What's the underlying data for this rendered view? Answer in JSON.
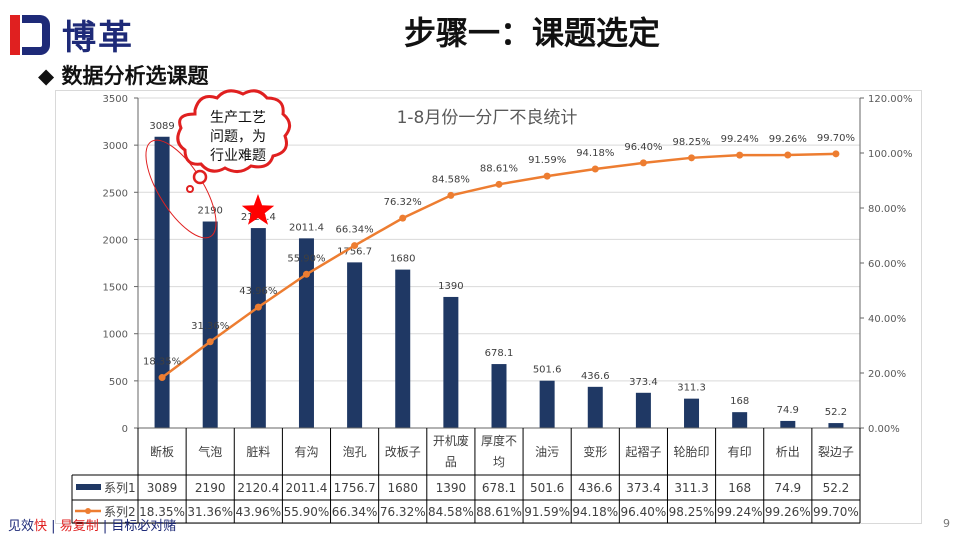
{
  "header": {
    "logo_text": "博革",
    "title": "步骤一：课题选定",
    "subtitle": "数据分析选课题",
    "bullet_icon": "diamond-icon"
  },
  "callout": {
    "text_lines": [
      "生产工艺",
      "问题，为",
      "行业难题"
    ]
  },
  "footer": {
    "parts": [
      "见效",
      "快",
      "易复制",
      "目标必对赌"
    ],
    "page": "9"
  },
  "colors": {
    "bar": "#1f3864",
    "line": "#ed7d31",
    "accent": "#e02020"
  },
  "chart_data": {
    "type": "bar+line",
    "title": "1-8月份一分厂不良统计",
    "categories": [
      "断板",
      "气泡",
      "脏料",
      "有沟",
      "泡孔",
      "改板子",
      "开机废品",
      "厚度不均",
      "油污",
      "变形",
      "起褶子",
      "轮胎印",
      "有印",
      "析出",
      "裂边子"
    ],
    "series": [
      {
        "name": "系列1",
        "type": "bar",
        "axis": "left",
        "values": [
          3089,
          2190,
          2120.4,
          2011.4,
          1756.7,
          1680,
          1390,
          678.1,
          501.6,
          436.6,
          373.4,
          311.3,
          168,
          74.9,
          52.2
        ],
        "labels": [
          "3089",
          "2190",
          "2120.4",
          "2011.4",
          "1756.7",
          "1680",
          "1390",
          "678.1",
          "501.6",
          "436.6",
          "373.4",
          "311.3",
          "168",
          "74.9",
          "52.2"
        ]
      },
      {
        "name": "系列2",
        "type": "line",
        "axis": "right",
        "values": [
          18.35,
          31.36,
          43.96,
          55.9,
          66.34,
          76.32,
          84.58,
          88.61,
          91.59,
          94.18,
          96.4,
          98.25,
          99.24,
          99.26,
          99.7
        ],
        "labels": [
          "18.35%",
          "31.36%",
          "43.96%",
          "55.90%",
          "66.34%",
          "76.32%",
          "84.58%",
          "88.61%",
          "91.59%",
          "94.18%",
          "96.40%",
          "98.25%",
          "99.24%",
          "99.26%",
          "99.70%"
        ]
      }
    ],
    "y_left": {
      "range": [
        0,
        3500
      ],
      "ticks": [
        "0",
        "500",
        "1000",
        "1500",
        "2000",
        "2500",
        "3000",
        "3500"
      ]
    },
    "y_right": {
      "range": [
        0,
        120
      ],
      "ticks": [
        "0.00%",
        "20.00%",
        "40.00%",
        "60.00%",
        "80.00%",
        "100.00%",
        "120.00%"
      ]
    },
    "grid": true,
    "legend": "data-table"
  }
}
